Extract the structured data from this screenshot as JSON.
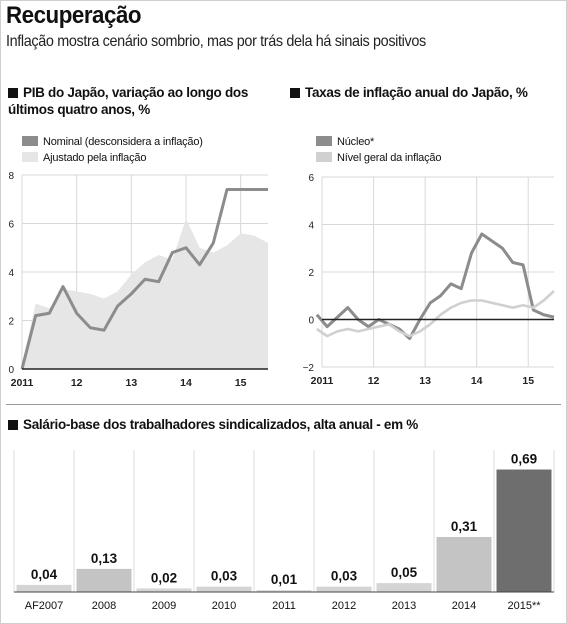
{
  "header": {
    "title": "Recuperação",
    "subtitle": "Inflação mostra cenário sombrio, mas por trás dela há sinais positivos"
  },
  "colors": {
    "dark_gray": "#8c8c8c",
    "light_gray": "#e6e6e6",
    "mid_gray": "#c4c4c4",
    "darkest_bar": "#6e6e6e"
  },
  "chart_data": [
    {
      "type": "line",
      "title": "PIB do Japão, variação ao longo dos últimos quatro anos, %",
      "xlabel": "",
      "ylabel": "",
      "x_ticks": [
        "2011",
        "12",
        "13",
        "14",
        "15"
      ],
      "y_ticks": [
        "0",
        "2",
        "4",
        "6",
        "8"
      ],
      "ylim": [
        0,
        8
      ],
      "xlim": [
        2011,
        2015.5
      ],
      "grid": true,
      "series": [
        {
          "name": "Ajustado pela inflação",
          "style": "area",
          "color": "#e6e6e6",
          "x": [
            2011.0,
            2011.25,
            2011.5,
            2011.75,
            2012.0,
            2012.25,
            2012.5,
            2012.75,
            2013.0,
            2013.25,
            2013.5,
            2013.75,
            2014.0,
            2014.25,
            2014.5,
            2014.75,
            2015.0,
            2015.25,
            2015.5
          ],
          "values": [
            0.2,
            2.7,
            2.5,
            3.3,
            3.2,
            3.1,
            2.9,
            3.2,
            3.9,
            4.4,
            4.7,
            4.5,
            6.2,
            5.0,
            4.8,
            5.1,
            5.6,
            5.5,
            5.2
          ]
        },
        {
          "name": "Nominal (desconsidera a inflação)",
          "style": "line",
          "color": "#8c8c8c",
          "x": [
            2011.0,
            2011.25,
            2011.5,
            2011.75,
            2012.0,
            2012.25,
            2012.5,
            2012.75,
            2013.0,
            2013.25,
            2013.5,
            2013.75,
            2014.0,
            2014.25,
            2014.5,
            2014.75,
            2015.0,
            2015.25,
            2015.5
          ],
          "values": [
            0.0,
            2.2,
            2.3,
            3.4,
            2.3,
            1.7,
            1.6,
            2.6,
            3.1,
            3.7,
            3.6,
            4.8,
            5.0,
            4.3,
            5.2,
            7.4,
            7.4,
            7.4,
            7.4
          ]
        }
      ]
    },
    {
      "type": "line",
      "title": "Taxas de inflação anual do Japão, %",
      "xlabel": "",
      "ylabel": "",
      "x_ticks": [
        "2011",
        "12",
        "13",
        "14",
        "15"
      ],
      "y_ticks": [
        "−2",
        "0",
        "2",
        "4",
        "6"
      ],
      "ylim": [
        -2,
        6
      ],
      "xlim": [
        2011,
        2015.5
      ],
      "grid": true,
      "series": [
        {
          "name": "Núcleo*",
          "color": "#8c8c8c",
          "x": [
            2010.9,
            2011.1,
            2011.3,
            2011.5,
            2011.7,
            2011.9,
            2012.1,
            2012.3,
            2012.5,
            2012.7,
            2012.9,
            2013.1,
            2013.3,
            2013.5,
            2013.7,
            2013.9,
            2014.1,
            2014.3,
            2014.5,
            2014.7,
            2014.9,
            2015.1,
            2015.3,
            2015.5
          ],
          "values": [
            0.2,
            -0.3,
            0.1,
            0.5,
            0.0,
            -0.3,
            0.0,
            -0.2,
            -0.4,
            -0.8,
            0.0,
            0.7,
            1.0,
            1.5,
            1.3,
            2.8,
            3.6,
            3.3,
            3.0,
            2.4,
            2.3,
            0.4,
            0.2,
            0.1
          ]
        },
        {
          "name": "Nível geral da inflação",
          "color": "#d0d0d0",
          "x": [
            2010.9,
            2011.1,
            2011.3,
            2011.5,
            2011.7,
            2011.9,
            2012.1,
            2012.3,
            2012.5,
            2012.7,
            2012.9,
            2013.1,
            2013.3,
            2013.5,
            2013.7,
            2013.9,
            2014.1,
            2014.3,
            2014.5,
            2014.7,
            2014.9,
            2015.1,
            2015.3,
            2015.5
          ],
          "values": [
            -0.4,
            -0.7,
            -0.5,
            -0.4,
            -0.5,
            -0.4,
            -0.3,
            -0.2,
            -0.5,
            -0.7,
            -0.5,
            -0.2,
            0.2,
            0.5,
            0.7,
            0.8,
            0.8,
            0.7,
            0.6,
            0.5,
            0.6,
            0.5,
            0.8,
            1.2
          ]
        }
      ]
    },
    {
      "type": "bar",
      "title": "Salário-base dos trabalhadores sindicalizados, alta anual - em %",
      "xlabel": "",
      "ylabel": "",
      "ylim": [
        0,
        0.8
      ],
      "categories": [
        "AF2007",
        "2008",
        "2009",
        "2010",
        "2011",
        "2012",
        "2013",
        "2014",
        "2015**"
      ],
      "values": [
        0.04,
        0.13,
        0.02,
        0.03,
        0.01,
        0.03,
        0.05,
        0.31,
        0.69
      ],
      "value_labels": [
        "0,04",
        "0,13",
        "0,02",
        "0,03",
        "0,01",
        "0,03",
        "0,05",
        "0,31",
        "0,69"
      ],
      "bar_colors": [
        "#d4d4d4",
        "#c4c4c4",
        "#d4d4d4",
        "#d4d4d4",
        "#d4d4d4",
        "#d4d4d4",
        "#d4d4d4",
        "#c4c4c4",
        "#6e6e6e"
      ]
    }
  ]
}
